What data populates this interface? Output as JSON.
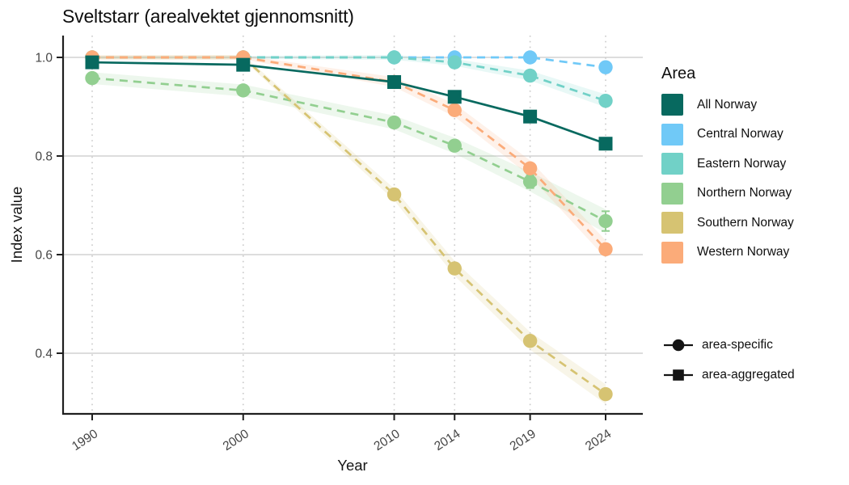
{
  "title": "Sveltstarr (arealvektet gjennomsnitt)",
  "axes": {
    "x_label": "Year",
    "y_label": "Index value",
    "x_ticks": [
      {
        "label": "1990",
        "value": 1990
      },
      {
        "label": "2000",
        "value": 2000
      },
      {
        "label": "2010",
        "value": 2010
      },
      {
        "label": "2014",
        "value": 2014
      },
      {
        "label": "2019",
        "value": 2019
      },
      {
        "label": "2024",
        "value": 2024
      }
    ],
    "y_ticks": [
      {
        "label": "1.0",
        "value": 1.0
      },
      {
        "label": "0.8",
        "value": 0.8
      },
      {
        "label": "0.6",
        "value": 0.6
      },
      {
        "label": "0.4",
        "value": 0.4
      }
    ]
  },
  "legend": {
    "title": "Area",
    "items": [
      {
        "label": "All Norway",
        "color": "#07695f"
      },
      {
        "label": "Central Norway",
        "color": "#70c9f7"
      },
      {
        "label": "Eastern Norway",
        "color": "#71d1c7"
      },
      {
        "label": "Northern Norway",
        "color": "#92cf90"
      },
      {
        "label": "Southern Norway",
        "color": "#d6c372"
      },
      {
        "label": "Western Norway",
        "color": "#fbab79"
      }
    ]
  },
  "shape_legend": {
    "items": [
      {
        "label": "area-specific",
        "marker": "circle"
      },
      {
        "label": "area-aggregated",
        "marker": "square"
      }
    ]
  },
  "colors": {
    "grid": "#d8d8d8",
    "grid_dotted": "#c9c9c9",
    "axis": "#1f1f1f",
    "tick_label": "#444444"
  },
  "chart_data": {
    "type": "line",
    "title": "Sveltstarr (arealvektet gjennomsnitt)",
    "xlabel": "Year",
    "ylabel": "Index value",
    "x": [
      1990,
      2000,
      2010,
      2014,
      2019,
      2024
    ],
    "ylim": [
      0.277,
      1.051
    ],
    "grid": "horizontal solid + vertical dotted at ticks",
    "legend_position": "right",
    "series": [
      {
        "name": "All Norway",
        "color": "#07695f",
        "marker": "square",
        "line": "solid",
        "values": [
          0.99,
          0.985,
          0.95,
          0.92,
          0.88,
          0.825
        ]
      },
      {
        "name": "Central Norway",
        "color": "#70c9f7",
        "marker": "circle",
        "line": "dashed",
        "values": [
          1.0,
          1.0,
          1.0,
          1.0,
          1.0,
          0.98
        ]
      },
      {
        "name": "Eastern Norway",
        "color": "#71d1c7",
        "marker": "circle",
        "line": "dashed",
        "values": [
          1.0,
          1.0,
          1.0,
          0.99,
          0.963,
          0.912
        ],
        "ribbon": [
          0.003,
          0.003,
          0.005,
          0.007,
          0.01,
          0.013
        ]
      },
      {
        "name": "Northern Norway",
        "color": "#92cf90",
        "marker": "circle",
        "line": "dashed",
        "values": [
          0.958,
          0.933,
          0.868,
          0.821,
          0.748,
          0.668
        ],
        "ribbon": [
          0.012,
          0.012,
          0.014,
          0.016,
          0.02,
          0.024
        ],
        "error_bars": [
          null,
          null,
          null,
          null,
          0.013,
          0.02
        ]
      },
      {
        "name": "Southern Norway",
        "color": "#d6c372",
        "marker": "circle",
        "line": "dashed",
        "values": [
          1.0,
          1.0,
          0.722,
          0.572,
          0.425,
          0.317
        ],
        "ribbon": [
          0.004,
          0.005,
          0.012,
          0.015,
          0.018,
          0.02
        ]
      },
      {
        "name": "Western Norway",
        "color": "#fbab79",
        "marker": "circle",
        "line": "dashed",
        "values": [
          1.0,
          1.0,
          0.95,
          0.893,
          0.775,
          0.611
        ],
        "ribbon": [
          0.004,
          0.004,
          0.01,
          0.013,
          0.016,
          0.018
        ]
      }
    ],
    "draw_order": [
      "Central Norway",
      "Eastern Norway",
      "Northern Norway",
      "Southern Norway",
      "Western Norway",
      "All Norway"
    ]
  }
}
